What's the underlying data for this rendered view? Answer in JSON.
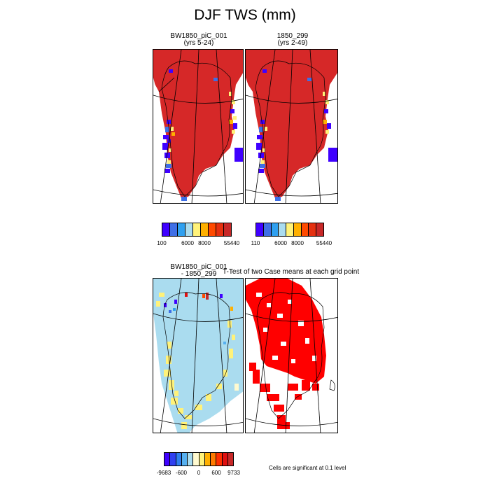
{
  "title": "DJF TWS (mm)",
  "panels": {
    "p1": {
      "title": "BW1850_piC_001",
      "subtitle": "(yrs 5-24)"
    },
    "p2": {
      "title": "1850_299",
      "subtitle": "(yrs 2-49)"
    },
    "p3": {
      "title": "BW1850_piC_001",
      "subtitle": "- 1850_299"
    },
    "p4": {
      "title": "T-Test of two Case means at each grid point"
    }
  },
  "note": "Cells are significant at 0.1 level",
  "chart_data": [
    {
      "type": "heatmap",
      "title": "BW1850_piC_001 (yrs 5-24)",
      "variable": "DJF TWS (mm)",
      "colorbar": {
        "colors": [
          "#3f00ff",
          "#3f6fe6",
          "#2fa0f0",
          "#aadcef",
          "#fff27a",
          "#ffb000",
          "#ff4a00",
          "#e53010",
          "#c82828"
        ],
        "tick_labels": [
          "100",
          "6000",
          "8000",
          "55440"
        ],
        "min": 100,
        "max": 55440
      },
      "dominant_value_class": "highest (> 8000 mm) over ice sheet interior",
      "margin_values": "low (100-6000 mm) along western and eastern coasts"
    },
    {
      "type": "heatmap",
      "title": "1850_299 (yrs 2-49)",
      "variable": "DJF TWS (mm)",
      "colorbar": {
        "colors": [
          "#3f00ff",
          "#3f6fe6",
          "#2fa0f0",
          "#aadcef",
          "#fff27a",
          "#ffb000",
          "#ff4a00",
          "#e53010",
          "#c82828"
        ],
        "tick_labels": [
          "110",
          "6000",
          "8000",
          "55440"
        ],
        "min": 110,
        "max": 55440
      },
      "dominant_value_class": "highest (> 8000 mm) over ice sheet interior",
      "margin_values": "low (110-6000 mm) along western and eastern coasts"
    },
    {
      "type": "heatmap",
      "title": "BW1850_piC_001 - 1850_299",
      "variable": "DJF TWS difference (mm)",
      "colorbar": {
        "colors": [
          "#3f00ff",
          "#3040f0",
          "#2f7ff0",
          "#56b0f0",
          "#aadcef",
          "#fffad0",
          "#fff27a",
          "#ffb000",
          "#ff7a00",
          "#ff3000",
          "#e01010",
          "#c82828"
        ],
        "tick_labels": [
          "-9683",
          "-600",
          "0",
          "600",
          "9733"
        ],
        "min": -9683,
        "max": 9733
      },
      "dominant_value_class": "near zero (light blue) over most of Greenland",
      "margin_values": "small positive (yellow) along western and southern margins; mixed extremes along coasts"
    },
    {
      "type": "heatmap",
      "title": "T-Test of two Case means at each grid point",
      "values_legend": "red = significant at 0.1 level",
      "coverage": "northern and central Greenland largely significant; south partially"
    }
  ]
}
